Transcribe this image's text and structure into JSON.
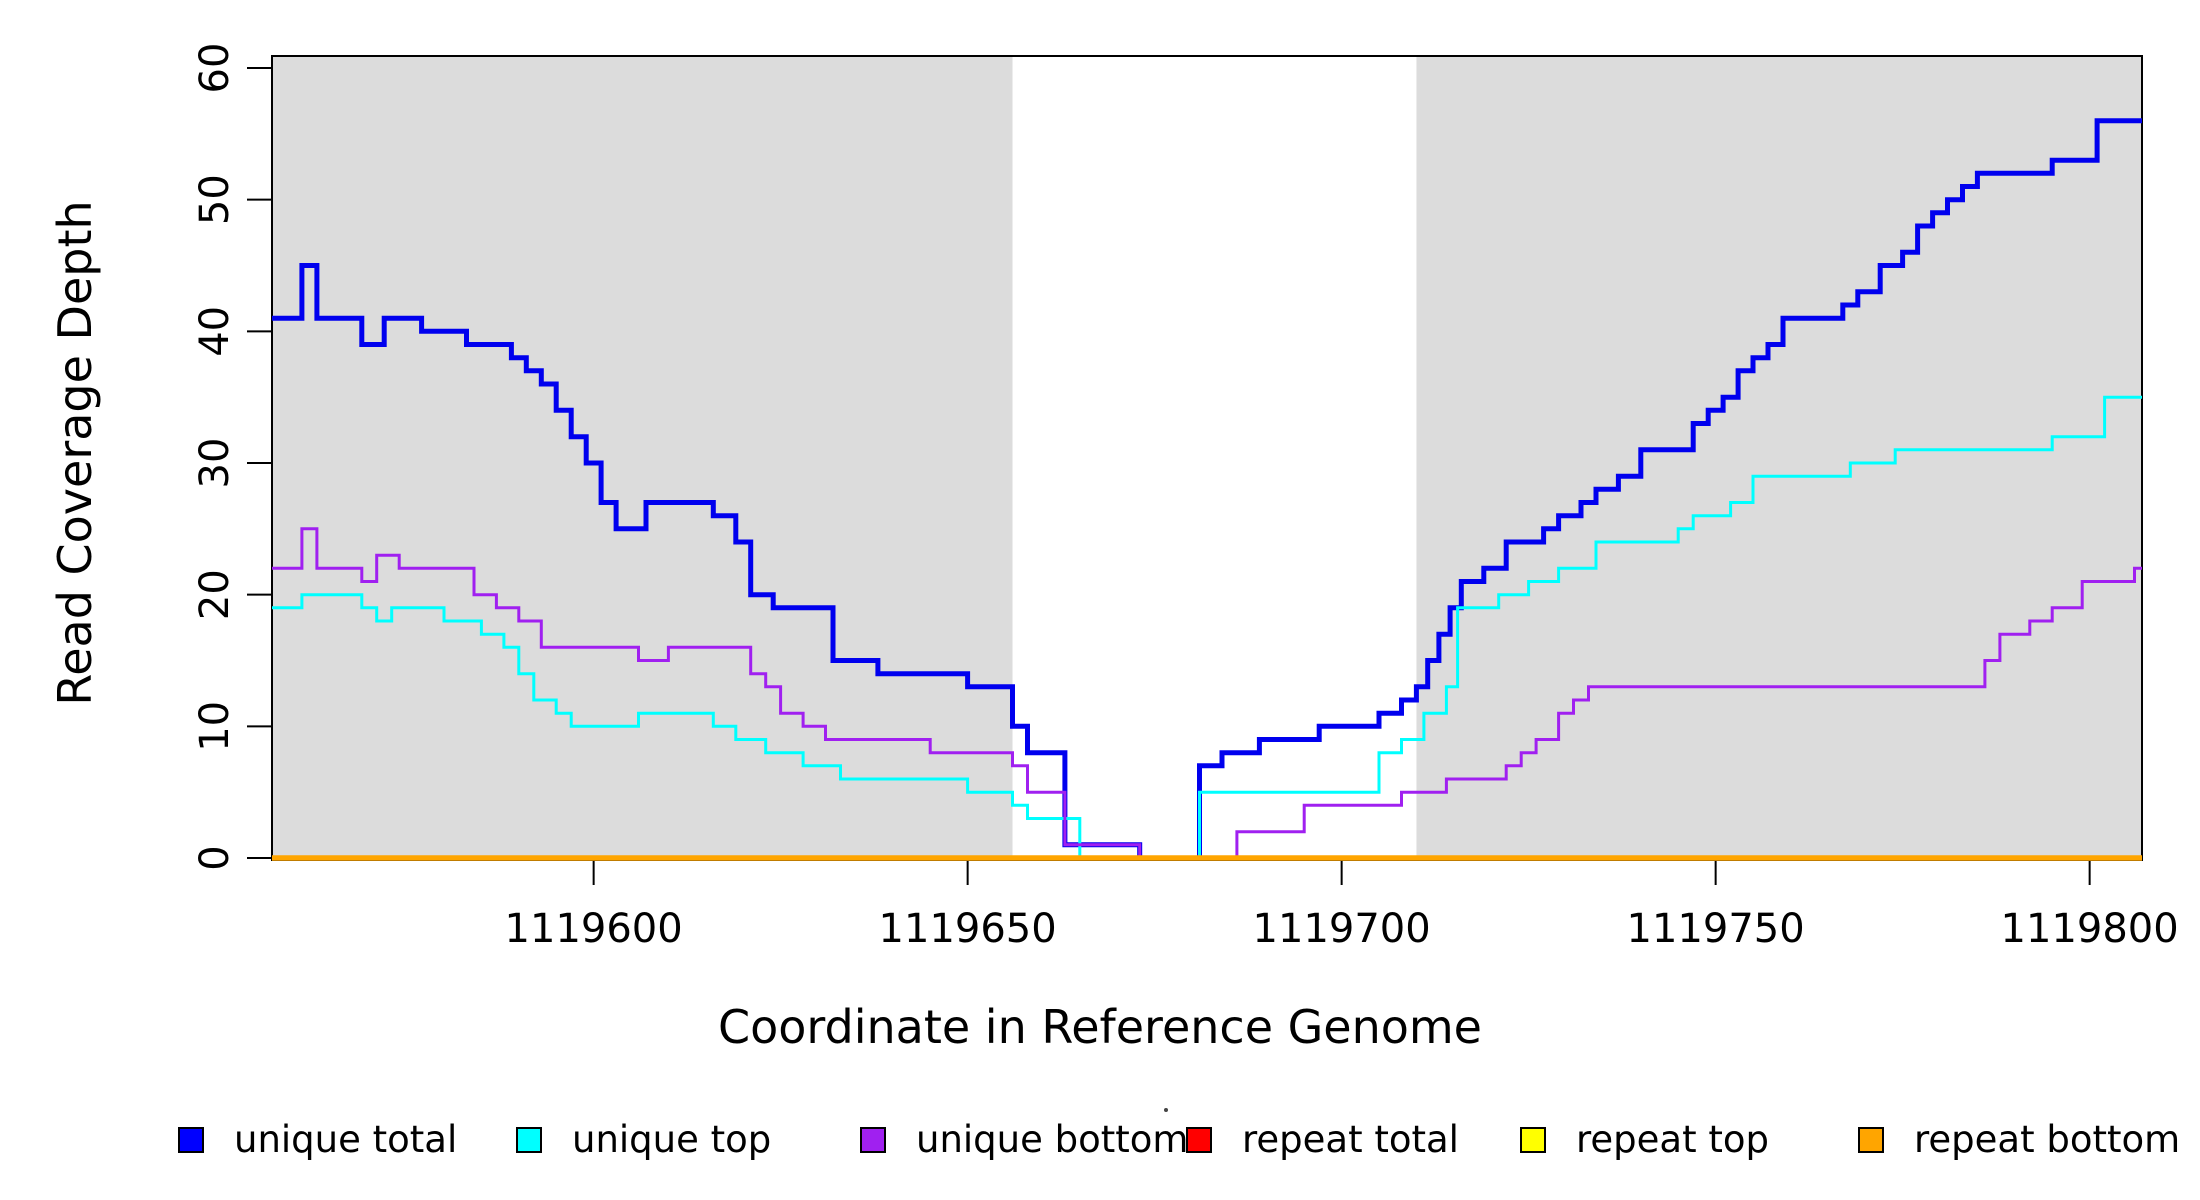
{
  "figure": {
    "background": "#ffffff",
    "plot_area_background": "#ffffff"
  },
  "chart_data": {
    "type": "line",
    "subtype": "step-after",
    "title": "",
    "xlabel": "Coordinate in Reference Genome",
    "ylabel": "Read Coverage Depth",
    "xlim": [
      1119557,
      1119807
    ],
    "ylim": [
      0,
      60
    ],
    "grid": false,
    "x_ticks": [
      1119600,
      1119650,
      1119700,
      1119750,
      1119800
    ],
    "y_ticks": [
      0,
      10,
      20,
      30,
      40,
      50,
      60
    ],
    "shaded_regions": [
      {
        "from": 1119557,
        "to": 1119656,
        "color": "#DCDCDC"
      },
      {
        "from": 1119710,
        "to": 1119807,
        "color": "#DCDCDC"
      }
    ],
    "series": [
      {
        "name": "unique total",
        "color": "#0000EE",
        "line_width": 5,
        "points": [
          [
            1119557,
            41
          ],
          [
            1119561,
            45
          ],
          [
            1119563,
            41
          ],
          [
            1119569,
            39
          ],
          [
            1119572,
            41
          ],
          [
            1119577,
            40
          ],
          [
            1119583,
            39
          ],
          [
            1119589,
            38
          ],
          [
            1119591,
            37
          ],
          [
            1119593,
            36
          ],
          [
            1119595,
            34
          ],
          [
            1119597,
            32
          ],
          [
            1119599,
            30
          ],
          [
            1119601,
            27
          ],
          [
            1119603,
            25
          ],
          [
            1119607,
            27
          ],
          [
            1119616,
            26
          ],
          [
            1119619,
            24
          ],
          [
            1119621,
            20
          ],
          [
            1119624,
            19
          ],
          [
            1119632,
            15
          ],
          [
            1119638,
            14
          ],
          [
            1119650,
            13
          ],
          [
            1119656,
            10
          ],
          [
            1119658,
            8
          ],
          [
            1119663,
            1
          ],
          [
            1119673,
            0
          ],
          [
            1119681,
            7
          ],
          [
            1119684,
            8
          ],
          [
            1119689,
            9
          ],
          [
            1119697,
            10
          ],
          [
            1119705,
            11
          ],
          [
            1119708,
            12
          ],
          [
            1119710,
            13
          ],
          [
            1119711.5,
            15
          ],
          [
            1119713,
            17
          ],
          [
            1119714.5,
            19
          ],
          [
            1119716,
            21
          ],
          [
            1119719,
            22
          ],
          [
            1119722,
            24
          ],
          [
            1119727,
            25
          ],
          [
            1119729,
            26
          ],
          [
            1119732,
            27
          ],
          [
            1119734,
            28
          ],
          [
            1119737,
            29
          ],
          [
            1119740,
            31
          ],
          [
            1119747,
            33
          ],
          [
            1119749,
            34
          ],
          [
            1119751,
            35
          ],
          [
            1119753,
            37
          ],
          [
            1119755,
            38
          ],
          [
            1119757,
            39
          ],
          [
            1119759,
            41
          ],
          [
            1119767,
            42
          ],
          [
            1119769,
            43
          ],
          [
            1119772,
            45
          ],
          [
            1119775,
            46
          ],
          [
            1119777,
            48
          ],
          [
            1119779,
            49
          ],
          [
            1119781,
            50
          ],
          [
            1119783,
            51
          ],
          [
            1119785,
            52
          ],
          [
            1119795,
            53
          ],
          [
            1119801,
            56
          ]
        ]
      },
      {
        "name": "unique top",
        "color": "#00FFFF",
        "line_width": 3,
        "points": [
          [
            1119557,
            19
          ],
          [
            1119561,
            20
          ],
          [
            1119569,
            19
          ],
          [
            1119571,
            18
          ],
          [
            1119573,
            19
          ],
          [
            1119580,
            18
          ],
          [
            1119585,
            17
          ],
          [
            1119588,
            16
          ],
          [
            1119590,
            14
          ],
          [
            1119592,
            12
          ],
          [
            1119595,
            11
          ],
          [
            1119597,
            10
          ],
          [
            1119606,
            11
          ],
          [
            1119616,
            10
          ],
          [
            1119619,
            9
          ],
          [
            1119623,
            8
          ],
          [
            1119628,
            7
          ],
          [
            1119633,
            6
          ],
          [
            1119650,
            5
          ],
          [
            1119656,
            4
          ],
          [
            1119658,
            3
          ],
          [
            1119665,
            0
          ],
          [
            1119681,
            5
          ],
          [
            1119705,
            8
          ],
          [
            1119708,
            9
          ],
          [
            1119711,
            11
          ],
          [
            1119714,
            13
          ],
          [
            1119715.5,
            19
          ],
          [
            1119721,
            20
          ],
          [
            1119725,
            21
          ],
          [
            1119729,
            22
          ],
          [
            1119734,
            24
          ],
          [
            1119745,
            25
          ],
          [
            1119747,
            26
          ],
          [
            1119752,
            27
          ],
          [
            1119755,
            29
          ],
          [
            1119768,
            30
          ],
          [
            1119774,
            31
          ],
          [
            1119795,
            32
          ],
          [
            1119802,
            35
          ]
        ]
      },
      {
        "name": "unique bottom",
        "color": "#A020F0",
        "line_width": 3,
        "points": [
          [
            1119557,
            22
          ],
          [
            1119561,
            25
          ],
          [
            1119563,
            22
          ],
          [
            1119569,
            21
          ],
          [
            1119571,
            23
          ],
          [
            1119574,
            22
          ],
          [
            1119584,
            20
          ],
          [
            1119587,
            19
          ],
          [
            1119590,
            18
          ],
          [
            1119593,
            16
          ],
          [
            1119606,
            15
          ],
          [
            1119610,
            16
          ],
          [
            1119621,
            14
          ],
          [
            1119623,
            13
          ],
          [
            1119625,
            11
          ],
          [
            1119628,
            10
          ],
          [
            1119631,
            9
          ],
          [
            1119645,
            8
          ],
          [
            1119656,
            7
          ],
          [
            1119658,
            5
          ],
          [
            1119663,
            1
          ],
          [
            1119673,
            0
          ],
          [
            1119686,
            2
          ],
          [
            1119695,
            4
          ],
          [
            1119708,
            5
          ],
          [
            1119714,
            6
          ],
          [
            1119722,
            7
          ],
          [
            1119724,
            8
          ],
          [
            1119726,
            9
          ],
          [
            1119729,
            11
          ],
          [
            1119731,
            12
          ],
          [
            1119733,
            13
          ],
          [
            1119786,
            15
          ],
          [
            1119788,
            17
          ],
          [
            1119792,
            18
          ],
          [
            1119795,
            19
          ],
          [
            1119799,
            21
          ],
          [
            1119806,
            22
          ]
        ]
      },
      {
        "name": "repeat total",
        "color": "#FF0000",
        "line_width": 3.5,
        "points": [
          [
            1119557,
            0
          ]
        ]
      },
      {
        "name": "repeat top",
        "color": "#FFFF00",
        "line_width": 3.5,
        "points": [
          [
            1119557,
            0
          ]
        ]
      },
      {
        "name": "repeat bottom",
        "color": "#FFA500",
        "line_width": 5.5,
        "points": [
          [
            1119557,
            0
          ]
        ]
      }
    ],
    "legend": {
      "position": "bottom",
      "items": [
        {
          "label": "unique total",
          "color": "#0000FF"
        },
        {
          "label": "unique top",
          "color": "#00FFFF"
        },
        {
          "label": "unique bottom",
          "color": "#A020F0"
        },
        {
          "label": "repeat total",
          "color": "#FF0000"
        },
        {
          "label": "repeat top",
          "color": "#FFFF00"
        },
        {
          "label": "repeat bottom",
          "color": "#FFA500"
        }
      ]
    }
  }
}
